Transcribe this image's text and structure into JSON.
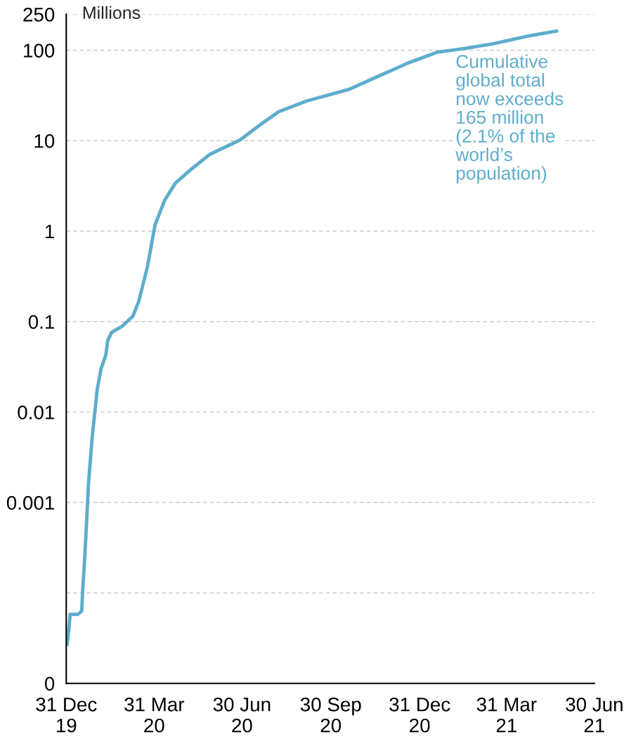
{
  "chart_data": {
    "type": "line",
    "ylabel": "Millions",
    "log": "y",
    "grid": "y",
    "marker": "none",
    "line_style": "solid",
    "x": [
      "2020-01-01",
      "2020-01-03",
      "2020-01-04",
      "2020-01-12",
      "2020-01-16",
      "2020-01-17",
      "2020-01-19",
      "2020-01-21",
      "2020-01-23",
      "2020-01-27",
      "2020-01-30",
      "2020-02-01",
      "2020-02-05",
      "2020-02-10",
      "2020-02-12",
      "2020-02-16",
      "2020-02-27",
      "2020-03-09",
      "2020-03-15",
      "2020-03-24",
      "2020-04-01",
      "2020-04-11",
      "2020-04-22",
      "2020-05-07",
      "2020-05-28",
      "2020-06-28",
      "2020-07-17",
      "2020-08-07",
      "2020-09-05",
      "2020-10-19",
      "2020-11-17",
      "2020-12-20",
      "2021-01-18",
      "2021-02-16",
      "2021-03-17",
      "2021-04-23",
      "2021-05-22"
    ],
    "series": [
      {
        "color": "#5eadcc",
        "values": [
          2.7e-05,
          4.3e-05,
          5.8e-05,
          5.8e-05,
          6.3e-05,
          0.000107,
          0.00023,
          0.00059,
          0.0016,
          0.0055,
          0.011,
          0.0176,
          0.03,
          0.043,
          0.062,
          0.076,
          0.089,
          0.115,
          0.166,
          0.4,
          1.18,
          2.2,
          3.4,
          4.7,
          7.1,
          10.2,
          14.5,
          20.9,
          27.5,
          37,
          51,
          73,
          95,
          105,
          118,
          144,
          163
        ]
      }
    ],
    "xlim": [
      "2019-12-31",
      "2021-06-30"
    ],
    "xticks": [
      {
        "value": "2019-12-31",
        "label": "31 Dec\n19"
      },
      {
        "value": "2020-03-31",
        "label": "31 Mar\n20"
      },
      {
        "value": "2020-06-30",
        "label": "30 Jun\n20"
      },
      {
        "value": "2020-09-30",
        "label": "30 Sep\n20"
      },
      {
        "value": "2020-12-31",
        "label": "31 Dec\n20"
      },
      {
        "value": "2021-03-31",
        "label": "31 Mar\n21"
      },
      {
        "value": "2021-06-30",
        "label": "30 Jun\n21"
      }
    ],
    "ylim": [
      1e-05,
      250
    ],
    "yticks": [
      {
        "value": 1e-05,
        "label": "0"
      },
      {
        "value": 0.0001,
        "label": null
      },
      0.001,
      0.01,
      0.1,
      1,
      10,
      100,
      250
    ],
    "annotations": [
      "Cumulative\nglobal total\nnow exceeds\n165 million\n(2.1% of the\nworld’s\npopulation)"
    ]
  }
}
